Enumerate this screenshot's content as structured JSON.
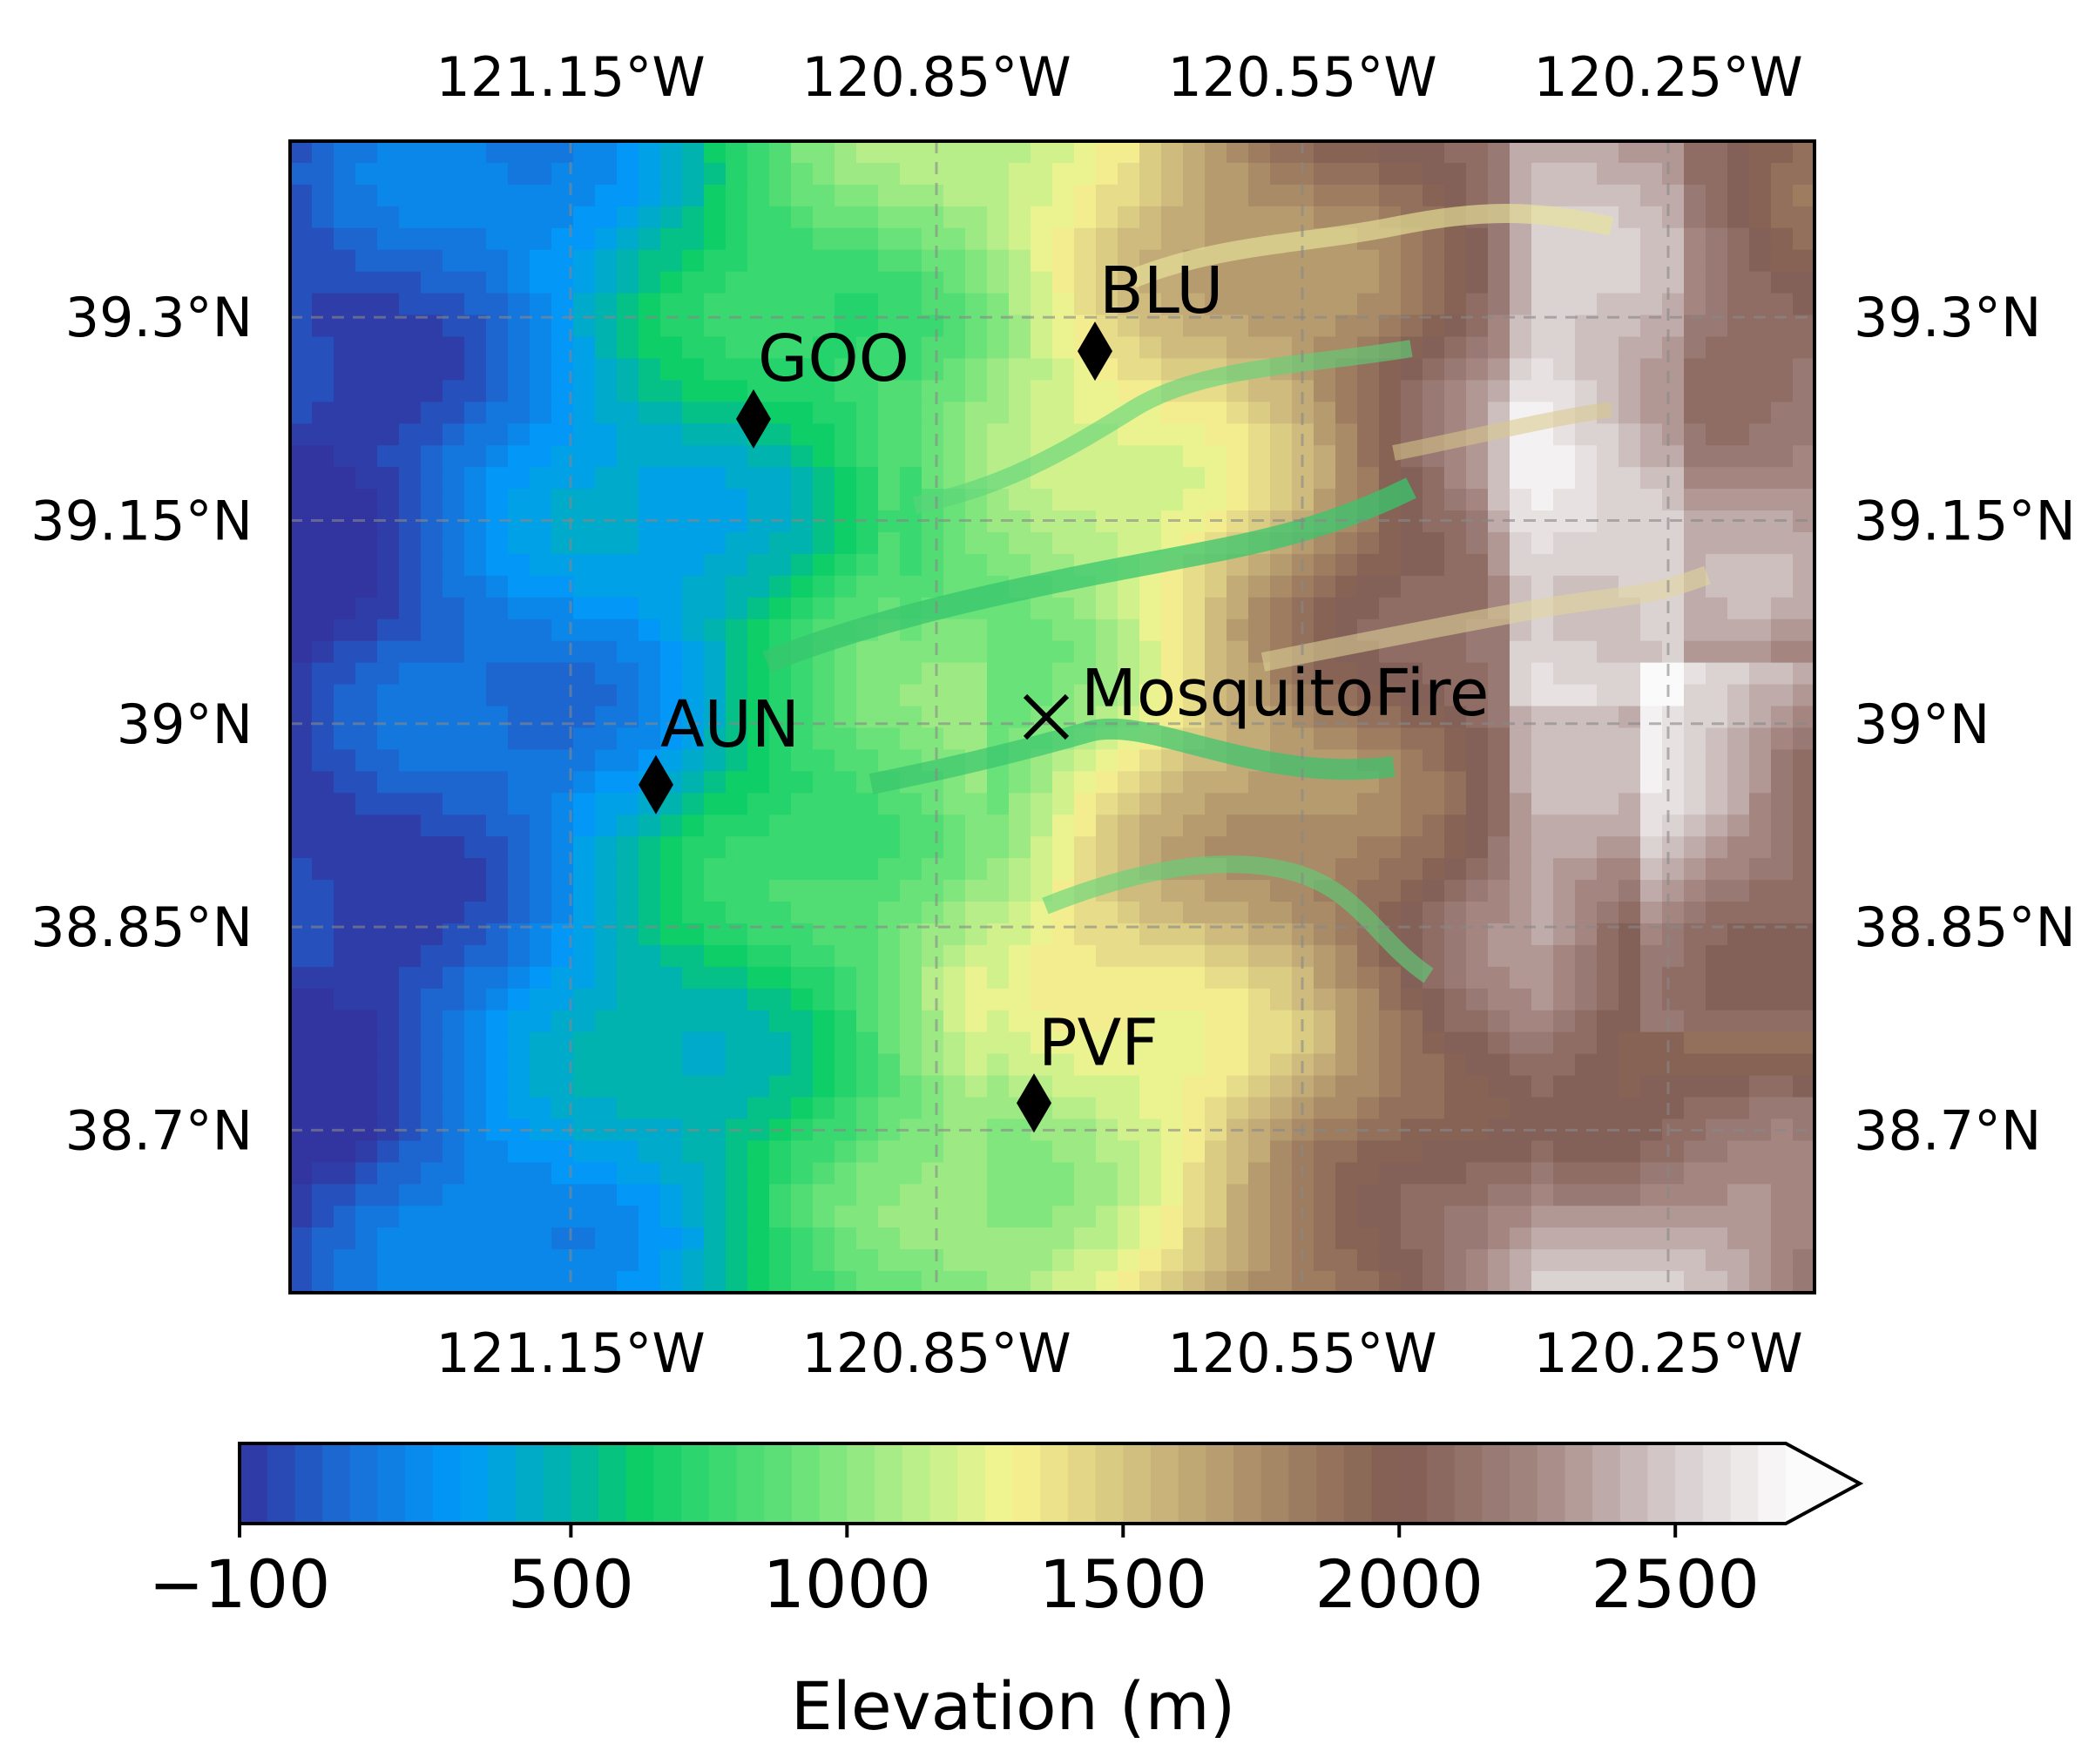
{
  "map": {
    "type": "elevation-contour-map",
    "lon_range": [
      -121.38,
      -120.13
    ],
    "lat_range": [
      38.58,
      39.43
    ],
    "lon_ticks": [
      {
        "value": -121.15,
        "label": "121.15°W"
      },
      {
        "value": -120.85,
        "label": "120.85°W"
      },
      {
        "value": -120.55,
        "label": "120.55°W"
      },
      {
        "value": -120.25,
        "label": "120.25°W"
      }
    ],
    "lat_ticks": [
      {
        "value": 39.3,
        "label": "39.3°N"
      },
      {
        "value": 39.15,
        "label": "39.15°N"
      },
      {
        "value": 39.0,
        "label": "39°N"
      },
      {
        "value": 38.85,
        "label": "38.85°N"
      },
      {
        "value": 38.7,
        "label": "38.7°N"
      }
    ],
    "gridlines": true,
    "colormap": "terrain",
    "stations": [
      {
        "name": "GOO",
        "lon": -121.0,
        "lat": 39.225,
        "marker": "diamond"
      },
      {
        "name": "BLU",
        "lon": -120.72,
        "lat": 39.275,
        "marker": "diamond"
      },
      {
        "name": "AUN",
        "lon": -121.08,
        "lat": 38.955,
        "marker": "diamond"
      },
      {
        "name": "PVF",
        "lon": -120.77,
        "lat": 38.72,
        "marker": "diamond"
      }
    ],
    "fire": {
      "name": "MosquitoFire",
      "lon": -120.76,
      "lat": 39.005,
      "marker": "x"
    }
  },
  "colorbar": {
    "label": "Elevation (m)",
    "min": -100,
    "max": 2700,
    "extend": "max",
    "ticks": [
      {
        "value": -100,
        "label": "−100"
      },
      {
        "value": 500,
        "label": "500"
      },
      {
        "value": 1000,
        "label": "1000"
      },
      {
        "value": 1500,
        "label": "1500"
      },
      {
        "value": 2000,
        "label": "2000"
      },
      {
        "value": 2500,
        "label": "2500"
      }
    ]
  }
}
